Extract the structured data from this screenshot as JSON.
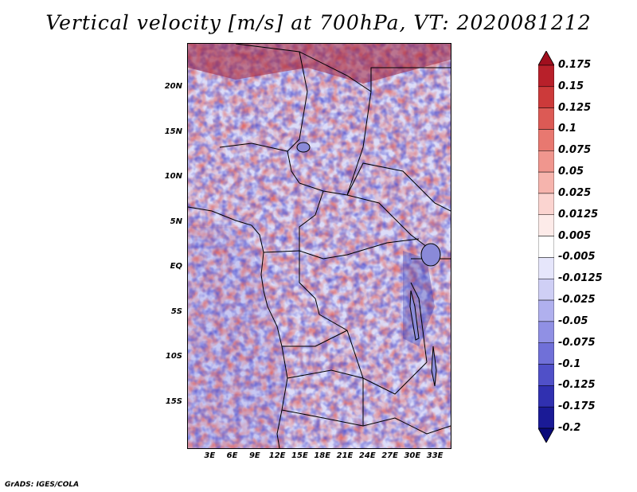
{
  "title": "Vertical velocity [m/s] at 700hPa, VT: 2020081212",
  "credit": "GrADS: IGES/COLA",
  "map": {
    "lon_range": [
      0,
      35
    ],
    "lat_range": [
      -20,
      25
    ],
    "lat_ticks": [
      "20N",
      "15N",
      "10N",
      "5N",
      "EQ",
      "5S",
      "10S",
      "15S"
    ],
    "lon_ticks": [
      "3E",
      "6E",
      "9E",
      "12E",
      "15E",
      "18E",
      "21E",
      "24E",
      "27E",
      "30E",
      "33E"
    ]
  },
  "colorbar": {
    "labels": [
      "0.175",
      "0.15",
      "0.125",
      "0.1",
      "0.075",
      "0.05",
      "0.025",
      "0.0125",
      "0.005",
      "-0.005",
      "-0.0125",
      "-0.025",
      "-0.05",
      "-0.075",
      "-0.1",
      "-0.125",
      "-0.175",
      "-0.2"
    ],
    "colors": [
      "#a00f1e",
      "#b8202a",
      "#cc3a3a",
      "#dc5a55",
      "#e87870",
      "#f0968e",
      "#f6b4ad",
      "#fbd4d0",
      "#fdebe9",
      "#ffffff",
      "#e6e6fb",
      "#cfcff5",
      "#b0b0ee",
      "#9090e4",
      "#7070d8",
      "#5050c8",
      "#3030b0",
      "#1a1a96",
      "#0a0a7a"
    ]
  }
}
